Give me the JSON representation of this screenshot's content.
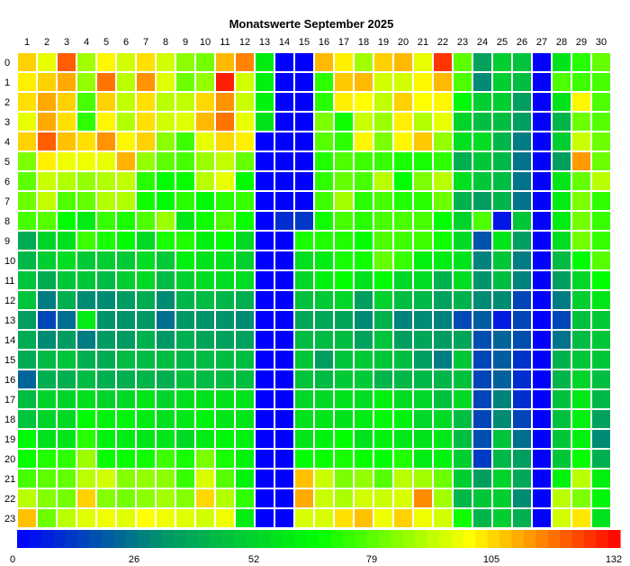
{
  "chart_data": {
    "type": "heatmap",
    "title": "Monatswerte September 2025",
    "x": [
      "1",
      "2",
      "3",
      "4",
      "5",
      "6",
      "7",
      "8",
      "9",
      "10",
      "11",
      "12",
      "13",
      "14",
      "15",
      "16",
      "17",
      "18",
      "19",
      "20",
      "21",
      "22",
      "23",
      "24",
      "25",
      "26",
      "27",
      "28",
      "29",
      "30"
    ],
    "y": [
      "0",
      "1",
      "2",
      "3",
      "4",
      "5",
      "6",
      "7",
      "8",
      "9",
      "10",
      "11",
      "12",
      "13",
      "14",
      "15",
      "16",
      "17",
      "18",
      "19",
      "20",
      "21",
      "22",
      "23"
    ],
    "values": [
      [
        105,
        96,
        120,
        87,
        100,
        93,
        103,
        93,
        84,
        81,
        108,
        115,
        60,
        0,
        0,
        108,
        101,
        87,
        105,
        108,
        96,
        125,
        78,
        36,
        50,
        47,
        0,
        57,
        71,
        79
      ],
      [
        101,
        105,
        110,
        85,
        117,
        90,
        113,
        95,
        80,
        85,
        128,
        93,
        61,
        0,
        0,
        72,
        106,
        108,
        93,
        93,
        100,
        108,
        76,
        30,
        50,
        45,
        0,
        76,
        74,
        75
      ],
      [
        103,
        110,
        105,
        75,
        105,
        91,
        103,
        90,
        91,
        104,
        113,
        92,
        62,
        0,
        0,
        71,
        101,
        99,
        91,
        105,
        99,
        100,
        64,
        50,
        50,
        35,
        0,
        57,
        100,
        76
      ],
      [
        96,
        110,
        103,
        72,
        100,
        89,
        103,
        93,
        95,
        108,
        117,
        96,
        57,
        0,
        0,
        82,
        68,
        92,
        86,
        101,
        89,
        96,
        52,
        45,
        45,
        35,
        0,
        42,
        80,
        77
      ],
      [
        105,
        120,
        107,
        103,
        113,
        100,
        105,
        84,
        74,
        96,
        104,
        101,
        0,
        0,
        0,
        77,
        72,
        100,
        82,
        100,
        106,
        85,
        56,
        55,
        42,
        27,
        0,
        50,
        92,
        80
      ],
      [
        82,
        101,
        97,
        97,
        96,
        109,
        85,
        78,
        75,
        86,
        91,
        79,
        0,
        0,
        0,
        70,
        76,
        74,
        73,
        69,
        69,
        72,
        40,
        48,
        43,
        25,
        0,
        35,
        112,
        80
      ],
      [
        78,
        92,
        89,
        85,
        89,
        91,
        71,
        66,
        67,
        90,
        96,
        65,
        0,
        0,
        0,
        72,
        79,
        75,
        90,
        66,
        82,
        90,
        56,
        48,
        45,
        25,
        0,
        58,
        79,
        90
      ],
      [
        80,
        91,
        76,
        79,
        89,
        89,
        68,
        65,
        71,
        64,
        71,
        73,
        0,
        0,
        0,
        74,
        87,
        71,
        75,
        70,
        71,
        80,
        41,
        35,
        42,
        25,
        0,
        60,
        82,
        72
      ],
      [
        75,
        77,
        66,
        60,
        73,
        69,
        76,
        86,
        59,
        68,
        76,
        67,
        0,
        10,
        12,
        68,
        75,
        71,
        75,
        75,
        75,
        66,
        52,
        76,
        5,
        48,
        0,
        60,
        81,
        73
      ],
      [
        39,
        52,
        56,
        74,
        69,
        65,
        54,
        69,
        70,
        61,
        66,
        54,
        0,
        0,
        69,
        70,
        70,
        66,
        76,
        74,
        74,
        68,
        54,
        18,
        58,
        35,
        0,
        55,
        81,
        73
      ],
      [
        43,
        50,
        55,
        49,
        50,
        49,
        55,
        49,
        61,
        57,
        57,
        51,
        0,
        0,
        56,
        60,
        69,
        68,
        79,
        73,
        61,
        60,
        57,
        28,
        48,
        27,
        0,
        44,
        65,
        77
      ],
      [
        47,
        39,
        48,
        48,
        44,
        50,
        54,
        44,
        51,
        55,
        55,
        55,
        0,
        0,
        53,
        62,
        66,
        57,
        65,
        53,
        55,
        41,
        55,
        32,
        45,
        28,
        0,
        35,
        53,
        66
      ],
      [
        47,
        27,
        40,
        30,
        30,
        34,
        39,
        30,
        42,
        44,
        42,
        40,
        0,
        0,
        46,
        49,
        53,
        35,
        51,
        45,
        43,
        36,
        41,
        30,
        30,
        15,
        0,
        27,
        50,
        58
      ],
      [
        35,
        15,
        24,
        60,
        32,
        32,
        33,
        24,
        33,
        32,
        32,
        30,
        0,
        0,
        38,
        38,
        37,
        30,
        41,
        28,
        30,
        28,
        16,
        20,
        6,
        15,
        0,
        15,
        46,
        49
      ],
      [
        39,
        30,
        34,
        27,
        34,
        34,
        41,
        33,
        40,
        37,
        36,
        36,
        0,
        0,
        44,
        44,
        45,
        36,
        47,
        35,
        37,
        34,
        37,
        17,
        22,
        17,
        0,
        25,
        44,
        48
      ],
      [
        39,
        44,
        47,
        40,
        39,
        44,
        44,
        45,
        43,
        44,
        45,
        45,
        0,
        0,
        48,
        35,
        47,
        49,
        48,
        45,
        35,
        27,
        48,
        15,
        20,
        11,
        0,
        41,
        48,
        48
      ],
      [
        22,
        40,
        40,
        44,
        40,
        40,
        42,
        40,
        46,
        44,
        45,
        45,
        0,
        0,
        47,
        44,
        49,
        49,
        42,
        43,
        43,
        42,
        46,
        15,
        21,
        10,
        0,
        42,
        52,
        45
      ],
      [
        45,
        52,
        52,
        56,
        52,
        54,
        58,
        52,
        56,
        57,
        57,
        57,
        0,
        0,
        53,
        54,
        57,
        55,
        61,
        55,
        53,
        46,
        54,
        15,
        28,
        10,
        0,
        46,
        59,
        43
      ],
      [
        47,
        52,
        54,
        65,
        62,
        63,
        60,
        56,
        59,
        62,
        58,
        58,
        0,
        0,
        57,
        58,
        57,
        60,
        64,
        62,
        53,
        54,
        45,
        15,
        30,
        15,
        0,
        46,
        61,
        36
      ],
      [
        64,
        56,
        58,
        71,
        62,
        60,
        58,
        58,
        54,
        60,
        63,
        61,
        0,
        0,
        58,
        62,
        66,
        57,
        62,
        59,
        57,
        59,
        45,
        17,
        47,
        24,
        0,
        48,
        61,
        30
      ],
      [
        67,
        70,
        72,
        86,
        67,
        67,
        68,
        74,
        69,
        82,
        69,
        62,
        0,
        0,
        66,
        67,
        69,
        67,
        66,
        70,
        60,
        62,
        50,
        13,
        43,
        35,
        0,
        48,
        67,
        40
      ],
      [
        75,
        78,
        79,
        90,
        93,
        83,
        85,
        84,
        73,
        94,
        77,
        62,
        0,
        0,
        107,
        92,
        82,
        85,
        77,
        90,
        87,
        80,
        50,
        35,
        52,
        38,
        0,
        62,
        90,
        61
      ],
      [
        90,
        83,
        81,
        105,
        83,
        81,
        84,
        87,
        83,
        104,
        89,
        72,
        0,
        0,
        110,
        92,
        88,
        93,
        92,
        94,
        114,
        87,
        43,
        48,
        50,
        30,
        0,
        90,
        82,
        63
      ],
      [
        107,
        80,
        90,
        95,
        97,
        95,
        99,
        97,
        95,
        93,
        97,
        60,
        0,
        0,
        94,
        94,
        103,
        107,
        97,
        105,
        97,
        93,
        68,
        42,
        50,
        40,
        0,
        93,
        102,
        57
      ]
    ],
    "scale_min": 0,
    "scale_max": 132,
    "colorbar_ticks": [
      0,
      26,
      52,
      79,
      105,
      132
    ],
    "colormap_stops": [
      "#0000ff",
      "#009966",
      "#00ff00",
      "#ffff00",
      "#ff0000"
    ]
  }
}
